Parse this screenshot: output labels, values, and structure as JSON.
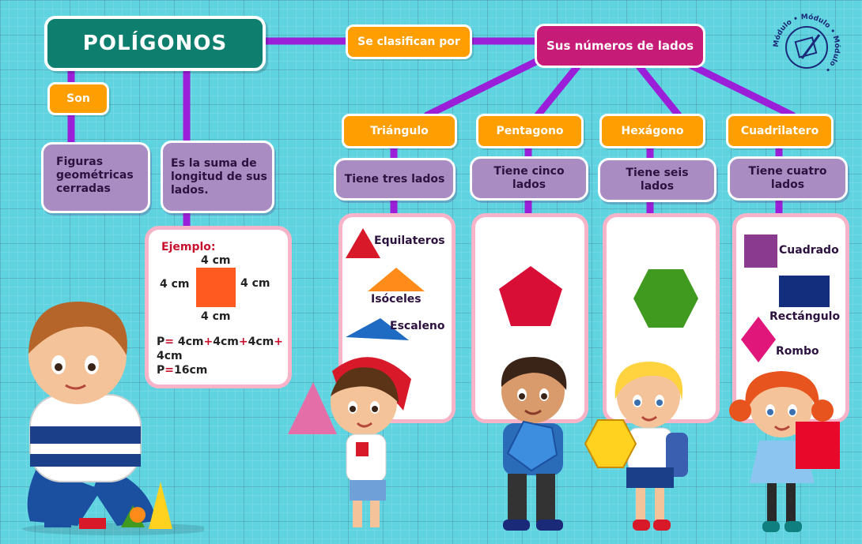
{
  "title": "POLÍGONOS",
  "branch_left": {
    "son_label": "Son",
    "son_text": "Figuras geométricas cerradas",
    "perimeter_text": "Es la suma de longitud de sus lados."
  },
  "classify_label": "Se clasifican por",
  "category": "Sus números de lados",
  "example": {
    "heading": "Ejemplo:",
    "top": "4 cm",
    "left": "4 cm",
    "right": "4 cm",
    "bottom": "4 cm",
    "formula_line1_parts": [
      "P",
      "=",
      " 4cm",
      "+",
      "4cm",
      "+",
      "4cm",
      "+"
    ],
    "formula_line2": "4cm",
    "result_p": "P",
    "result_eq": "=",
    "result_val": "16cm"
  },
  "polygons": [
    {
      "name": "Triángulo",
      "description": "Tiene tres lados",
      "shapes": [
        "Equilateros",
        "Isóceles",
        "Escaleno"
      ]
    },
    {
      "name": "Pentagono",
      "description": "Tiene cinco lados"
    },
    {
      "name": "Hexágono",
      "description": "Tiene seis lados"
    },
    {
      "name": "Cuadrilatero",
      "description": "Tiene cuatro lados",
      "shapes": [
        "Cuadrado",
        "Rectángulo",
        "Rombo"
      ]
    }
  ],
  "logo": {
    "text": "Módulo • Módulo • Módulo •"
  },
  "colors": {
    "title_bg": "#0e7f6e",
    "pill_orange": "#ff9e00",
    "category_magenta": "#c71b78",
    "description_lavender": "#a98cc2",
    "connector_purple": "#9b1fd8",
    "card_border": "#f7b4c8"
  }
}
